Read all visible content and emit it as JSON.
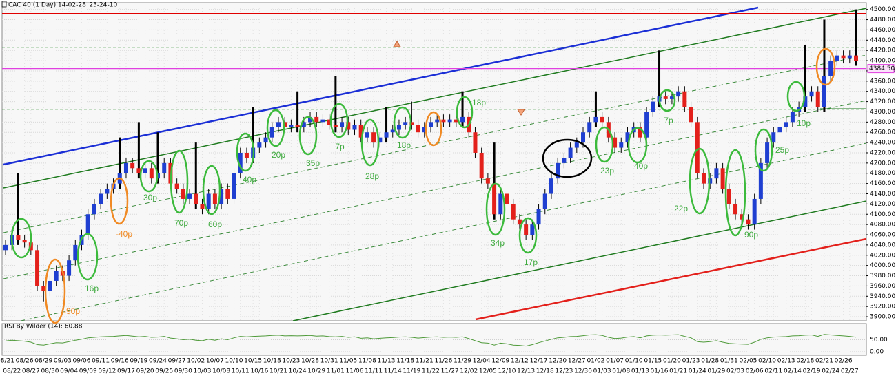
{
  "chart_data": {
    "type": "candlestick",
    "title": "CAC 40 (1 Day) 14-02-28_23-24-10",
    "up_color": "#1f3fd1",
    "down_color": "#e3201b",
    "wick_color": "#000000",
    "categories": [
      "08/21",
      "08/22",
      null,
      "08/26",
      "08/27",
      null,
      "08/29",
      "08/30",
      null,
      "09/03",
      "09/04",
      null,
      "09/06",
      "09/09",
      null,
      "09/11",
      "09/12",
      null,
      "09/16",
      "09/17",
      null,
      "09/19",
      "09/20",
      null,
      "09/24",
      "09/25",
      null,
      "09/27",
      "09/30",
      null,
      "10/02",
      "10/03",
      null,
      "10/07",
      "10/08",
      null,
      "10/10",
      "10/11",
      null,
      "10/15",
      "10/16",
      null,
      "10/18",
      "10/21",
      null,
      "10/23",
      "10/24",
      null,
      "10/28",
      "10/29",
      null,
      "10/31",
      "11/01",
      null,
      "11/05",
      "11/06",
      null,
      "11/08",
      "11/11",
      null,
      "11/13",
      "11/14",
      null,
      "11/18",
      "11/19",
      null,
      "11/21",
      "11/22",
      null,
      "11/26",
      "11/27",
      null,
      "11/29",
      "12/02",
      null,
      "12/04",
      "12/05",
      null,
      "12/09",
      "12/10",
      null,
      "12/12",
      "12/13",
      null,
      "12/17",
      "12/18",
      null,
      "12/20",
      "12/23",
      null,
      "12/27",
      "12/30",
      null,
      "01/02",
      "01/03",
      null,
      "01/07",
      "01/08",
      null,
      "01/10",
      "01/13",
      null,
      "01/15",
      "01/16",
      null,
      "01/20",
      "01/21",
      null,
      "01/23",
      "01/24",
      null,
      "01/28",
      "01/29",
      null,
      "01/31",
      "02/03",
      null,
      "02/05",
      "02/06",
      null,
      "02/10",
      "02/11",
      null,
      "02/13",
      "02/14",
      null,
      "02/18",
      "02/19",
      null,
      "02/21",
      "02/24",
      null,
      "02/26",
      "02/27",
      null
    ],
    "open": [
      4030,
      4040,
      4060,
      4050,
      4045,
      4030,
      3960,
      3950,
      3970,
      3990,
      3980,
      4010,
      4040,
      4060,
      4100,
      4120,
      4140,
      4150,
      4160,
      4180,
      4200,
      4190,
      4180,
      4190,
      4170,
      4180,
      4200,
      4160,
      4150,
      4130,
      4140,
      4120,
      4110,
      4140,
      4120,
      4150,
      4130,
      4180,
      4220,
      4210,
      4230,
      4240,
      4250,
      4270,
      4280,
      4270,
      4275,
      4270,
      4280,
      4290,
      4280,
      4285,
      4275,
      4270,
      4280,
      4265,
      4275,
      4250,
      4260,
      4240,
      4250,
      4260,
      4265,
      4275,
      4280,
      4275,
      4260,
      4270,
      4280,
      4285,
      4280,
      4285,
      4280,
      4290,
      4260,
      4220,
      4170,
      4160,
      4100,
      4140,
      4120,
      4090,
      4080,
      4060,
      4080,
      4110,
      4140,
      4170,
      4200,
      4210,
      4230,
      4240,
      4260,
      4280,
      4290,
      4280,
      4250,
      4230,
      4240,
      4260,
      4270,
      4250,
      4300,
      4320,
      4330,
      4325,
      4330,
      4340,
      4310,
      4280,
      4180,
      4160,
      4170,
      4190,
      4150,
      4120,
      4100,
      4090,
      4080,
      4130,
      4200,
      4240,
      4260,
      4270,
      4280,
      4300,
      4310,
      4330,
      4340,
      4310,
      4370,
      4400,
      4410,
      4405,
      4410
    ],
    "high": [
      4050,
      4070,
      4180,
      4060,
      4055,
      4040,
      3970,
      3980,
      4000,
      4000,
      4020,
      4050,
      4070,
      4110,
      4130,
      4150,
      4160,
      4170,
      4250,
      4210,
      4210,
      4280,
      4200,
      4200,
      4260,
      4210,
      4210,
      4170,
      4160,
      4150,
      4240,
      4130,
      4150,
      4150,
      4160,
      4160,
      4190,
      4230,
      4230,
      4310,
      4250,
      4260,
      4280,
      4290,
      4290,
      4285,
      4340,
      4290,
      4300,
      4300,
      4295,
      4295,
      4370,
      4290,
      4290,
      4285,
      4285,
      4270,
      4270,
      4260,
      4310,
      4275,
      4285,
      4290,
      4320,
      4285,
      4280,
      4290,
      4295,
      4295,
      4295,
      4295,
      4340,
      4300,
      4270,
      4230,
      4180,
      4240,
      4150,
      4150,
      4130,
      4100,
      4090,
      4090,
      4120,
      4150,
      4180,
      4210,
      4220,
      4240,
      4250,
      4270,
      4290,
      4340,
      4300,
      4290,
      4260,
      4250,
      4270,
      4280,
      4280,
      4310,
      4330,
      4420,
      4340,
      4340,
      4350,
      4350,
      4320,
      4290,
      4190,
      4180,
      4200,
      4200,
      4160,
      4130,
      4110,
      4100,
      4140,
      4210,
      4250,
      4270,
      4280,
      4290,
      4310,
      4320,
      4430,
      4350,
      4350,
      4480,
      4410,
      4420,
      4420,
      4420,
      4500
    ],
    "low": [
      4020,
      4030,
      4040,
      4035,
      4020,
      3950,
      3930,
      3940,
      3960,
      3970,
      3970,
      4000,
      4030,
      4050,
      4090,
      4110,
      4130,
      4140,
      4150,
      4170,
      4180,
      4170,
      4170,
      4160,
      4160,
      4170,
      4150,
      4140,
      4120,
      4120,
      4110,
      4100,
      4100,
      4110,
      4110,
      4120,
      4120,
      4170,
      4200,
      4200,
      4220,
      4230,
      4240,
      4260,
      4260,
      4260,
      4260,
      4260,
      4270,
      4270,
      4270,
      4265,
      4260,
      4260,
      4255,
      4255,
      4240,
      4240,
      4230,
      4230,
      4240,
      4250,
      4255,
      4265,
      4265,
      4250,
      4250,
      4260,
      4270,
      4270,
      4270,
      4270,
      4270,
      4250,
      4210,
      4160,
      4150,
      4090,
      4090,
      4110,
      4080,
      4070,
      4050,
      4050,
      4070,
      4100,
      4130,
      4160,
      4190,
      4200,
      4220,
      4230,
      4250,
      4270,
      4270,
      4240,
      4220,
      4220,
      4230,
      4250,
      4240,
      4240,
      4290,
      4310,
      4315,
      4315,
      4320,
      4300,
      4270,
      4170,
      4150,
      4150,
      4160,
      4140,
      4110,
      4090,
      4080,
      4070,
      4070,
      4120,
      4190,
      4230,
      4250,
      4260,
      4270,
      4290,
      4300,
      4320,
      4300,
      4300,
      4360,
      4390,
      4395,
      4395,
      4390
    ],
    "close": [
      4040,
      4060,
      4050,
      4045,
      4030,
      3960,
      3950,
      3970,
      3990,
      3980,
      4010,
      4040,
      4060,
      4100,
      4120,
      4140,
      4150,
      4160,
      4180,
      4200,
      4190,
      4180,
      4190,
      4170,
      4180,
      4200,
      4160,
      4150,
      4130,
      4140,
      4120,
      4110,
      4140,
      4120,
      4150,
      4130,
      4180,
      4220,
      4210,
      4230,
      4240,
      4250,
      4270,
      4280,
      4270,
      4275,
      4270,
      4280,
      4290,
      4280,
      4285,
      4275,
      4270,
      4280,
      4265,
      4275,
      4250,
      4260,
      4240,
      4250,
      4260,
      4265,
      4275,
      4280,
      4275,
      4260,
      4270,
      4280,
      4285,
      4280,
      4285,
      4280,
      4290,
      4260,
      4220,
      4170,
      4160,
      4100,
      4140,
      4120,
      4090,
      4080,
      4060,
      4080,
      4110,
      4140,
      4170,
      4200,
      4210,
      4230,
      4240,
      4260,
      4280,
      4290,
      4280,
      4250,
      4230,
      4240,
      4260,
      4270,
      4250,
      4300,
      4320,
      4330,
      4325,
      4330,
      4340,
      4310,
      4280,
      4180,
      4160,
      4170,
      4190,
      4150,
      4120,
      4100,
      4090,
      4080,
      4130,
      4200,
      4240,
      4260,
      4270,
      4280,
      4300,
      4310,
      4330,
      4340,
      4310,
      4370,
      4400,
      4410,
      4405,
      4410,
      4400
    ],
    "ylim": [
      3892,
      4513
    ],
    "yticks": [
      {
        "value": 3900,
        "label": "3900.00"
      },
      {
        "value": 3920,
        "label": "3920.00"
      },
      {
        "value": 3940,
        "label": "3940.00"
      },
      {
        "value": 3960,
        "label": "3960.00"
      },
      {
        "value": 3980,
        "label": "3980.00"
      },
      {
        "value": 4000,
        "label": "4000.00"
      },
      {
        "value": 4020,
        "label": "4020.00"
      },
      {
        "value": 4040,
        "label": "4040.00"
      },
      {
        "value": 4060,
        "label": "4060.00"
      },
      {
        "value": 4080,
        "label": "4080.00"
      },
      {
        "value": 4100,
        "label": "4100.00"
      },
      {
        "value": 4120,
        "label": "4120.00"
      },
      {
        "value": 4140,
        "label": "4140.00"
      },
      {
        "value": 4160,
        "label": "4160.00"
      },
      {
        "value": 4180,
        "label": "4180.00"
      },
      {
        "value": 4200,
        "label": "4200.00"
      },
      {
        "value": 4220,
        "label": "4220.00"
      },
      {
        "value": 4240,
        "label": "4240.00"
      },
      {
        "value": 4260,
        "label": "4260.00"
      },
      {
        "value": 4280,
        "label": "4280.00"
      },
      {
        "value": 4300,
        "label": "4300.00"
      },
      {
        "value": 4320,
        "label": "4320.00"
      },
      {
        "value": 4340,
        "label": "4340.00"
      },
      {
        "value": 4360,
        "label": "4360.00"
      },
      {
        "value": 4380,
        "label": "4380.00"
      },
      {
        "value": 4400,
        "label": "4400.00"
      },
      {
        "value": 4420,
        "label": "4420.00"
      },
      {
        "value": 4440,
        "label": "4440.00"
      },
      {
        "value": 4460,
        "label": "4460.00"
      },
      {
        "value": 4480,
        "label": "4480.00"
      },
      {
        "value": 4500,
        "label": "4500.00"
      }
    ],
    "levels": [
      {
        "value": 4492,
        "color": "#e00000",
        "style": "solid"
      },
      {
        "value": 4426,
        "color": "#2e8b2e",
        "style": "dashed"
      },
      {
        "value": 4384.5,
        "label": "4384.50",
        "color": "#e040e0",
        "style": "solid"
      },
      {
        "value": 4305,
        "color": "#2e8b2e",
        "style": "dashed"
      }
    ],
    "annotations": [
      {
        "text": "-90p",
        "color": "#f08a24"
      },
      {
        "text": "16p",
        "color": "#3faa3f"
      },
      {
        "text": "-40p",
        "color": "#f08a24"
      },
      {
        "text": "30p",
        "color": "#3faa3f"
      },
      {
        "text": "70p",
        "color": "#3faa3f"
      },
      {
        "text": "60p",
        "color": "#3faa3f"
      },
      {
        "text": "40p",
        "color": "#3faa3f"
      },
      {
        "text": "20p",
        "color": "#3faa3f"
      },
      {
        "text": "35p",
        "color": "#3faa3f"
      },
      {
        "text": "7p",
        "color": "#3faa3f"
      },
      {
        "text": "28p",
        "color": "#3faa3f"
      },
      {
        "text": "18p",
        "color": "#3faa3f"
      },
      {
        "text": "18p",
        "color": "#3faa3f"
      },
      {
        "text": "34p",
        "color": "#3faa3f"
      },
      {
        "text": "17p",
        "color": "#3faa3f"
      },
      {
        "text": "23p",
        "color": "#3faa3f"
      },
      {
        "text": "40p",
        "color": "#3faa3f"
      },
      {
        "text": "7p",
        "color": "#3faa3f"
      },
      {
        "text": "22p",
        "color": "#3faa3f"
      },
      {
        "text": "90p",
        "color": "#3faa3f"
      },
      {
        "text": "25p",
        "color": "#3faa3f"
      },
      {
        "text": "10p",
        "color": "#3faa3f"
      }
    ],
    "indicator": {
      "title": "RSI By Wilder (14): 60.88",
      "color": "#4f9a3a",
      "ylim": [
        0,
        100
      ],
      "yticks": [
        {
          "value": 50,
          "label": "50.00"
        },
        {
          "value": 0,
          "label": "0.00"
        }
      ],
      "values": [
        45,
        48,
        46,
        44,
        40,
        30,
        28,
        33,
        38,
        37,
        42,
        48,
        52,
        58,
        60,
        62,
        63,
        64,
        66,
        68,
        65,
        62,
        64,
        60,
        61,
        64,
        57,
        54,
        50,
        52,
        48,
        46,
        52,
        48,
        54,
        50,
        58,
        64,
        62,
        64,
        65,
        66,
        68,
        69,
        66,
        67,
        66,
        67,
        68,
        65,
        66,
        63,
        62,
        64,
        60,
        62,
        56,
        58,
        54,
        56,
        58,
        59,
        61,
        62,
        60,
        57,
        59,
        61,
        62,
        60,
        61,
        60,
        62,
        55,
        46,
        38,
        36,
        28,
        36,
        33,
        28,
        27,
        24,
        30,
        38,
        45,
        52,
        58,
        60,
        63,
        64,
        67,
        70,
        71,
        68,
        60,
        55,
        57,
        61,
        63,
        58,
        66,
        69,
        70,
        69,
        70,
        71,
        64,
        58,
        42,
        40,
        42,
        46,
        40,
        35,
        33,
        32,
        31,
        40,
        52,
        58,
        61,
        62,
        63,
        66,
        67,
        69,
        70,
        64,
        72,
        70,
        68,
        66,
        64,
        60.88
      ]
    }
  }
}
